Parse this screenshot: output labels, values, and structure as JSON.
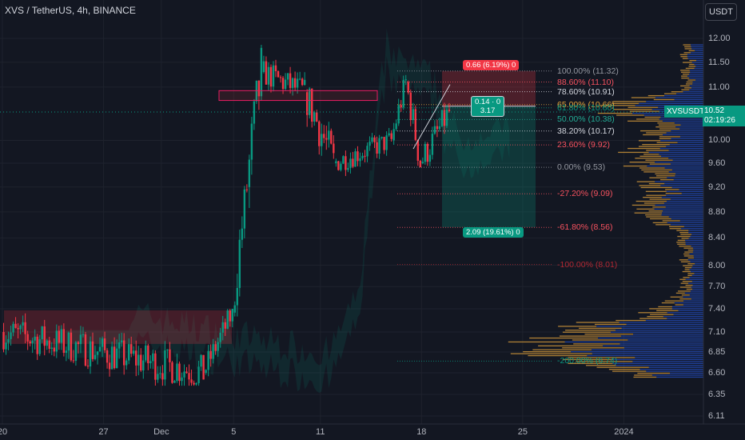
{
  "header": {
    "title": "XVS / TetherUS, 4h, BINANCE",
    "unit_button": "USDT"
  },
  "price_tag": {
    "symbol": "XVSUSDT",
    "price": "10.52",
    "countdown": "02:19:26"
  },
  "position_tool": {
    "target_label": "0.66 (6.19%) 0",
    "stop_label": "2.09 (19.61%) 0",
    "ratio_line1": "0.14 · 0",
    "ratio_line2": "3.17"
  },
  "fib_levels": [
    {
      "label": "100.00% (11.32)",
      "price": 11.32,
      "color": "#9598a1"
    },
    {
      "label": "88.60% (11.10)",
      "price": 11.1,
      "color": "#f7525f"
    },
    {
      "label": "78.60% (10.91)",
      "price": 10.91,
      "color": "#d1d4dc"
    },
    {
      "label": "65.00% (10.66)",
      "price": 10.66,
      "color": "#e3a33b"
    },
    {
      "label": "61.80% (10.60)",
      "price": 10.6,
      "color": "#089981"
    },
    {
      "label": "50.00% (10.38)",
      "price": 10.38,
      "color": "#22ab94"
    },
    {
      "label": "38.20% (10.17)",
      "price": 10.17,
      "color": "#d1d4dc"
    },
    {
      "label": "23.60% (9.92)",
      "price": 9.92,
      "color": "#f7525f"
    },
    {
      "label": "0.00% (9.53)",
      "price": 9.53,
      "color": "#9598a1"
    },
    {
      "label": "-27.20% (9.09)",
      "price": 9.09,
      "color": "#f7525f"
    },
    {
      "label": "-61.80% (8.56)",
      "price": 8.56,
      "color": "#f7525f"
    },
    {
      "label": "-100.00% (8.01)",
      "price": 8.01,
      "color": "#b22833"
    },
    {
      "label": "-200.00% (6.74)",
      "price": 6.74,
      "color": "#089981"
    }
  ],
  "colors": {
    "up": "#089981",
    "down": "#f23645",
    "background": "#131722",
    "volume_profile_a": "#e3a33b",
    "volume_profile_b": "#2962ff"
  },
  "chart_data": {
    "type": "candlestick",
    "scale": "log",
    "ylim": [
      6.11,
      12.0
    ],
    "price_ticks": [
      "12.00",
      "11.50",
      "11.00",
      "10.00",
      "9.60",
      "9.20",
      "8.80",
      "8.40",
      "8.00",
      "7.70",
      "7.40",
      "7.10",
      "6.85",
      "6.60",
      "6.35",
      "6.11"
    ],
    "x_ticks": [
      "20",
      "27",
      "Dec",
      "5",
      "11",
      "18",
      "25",
      "2024"
    ],
    "segments": [
      {
        "from": "Nov 20",
        "to": "Dec 3",
        "start": 7.1,
        "end": 6.6,
        "low": 6.45,
        "high": 7.62
      },
      {
        "from": "Dec 3",
        "to": "Dec 5",
        "start": 6.6,
        "end": 7.35,
        "low": 6.5,
        "high": 7.4
      },
      {
        "from": "Dec 5",
        "to": "Dec 6",
        "start": 7.35,
        "end": 9.2,
        "low": 7.3,
        "high": 9.3
      },
      {
        "from": "Dec 6",
        "to": "Dec 7",
        "start": 9.2,
        "end": 11.3,
        "low": 8.4,
        "high": 11.88
      },
      {
        "from": "Dec 7",
        "to": "Dec 10",
        "start": 11.3,
        "end": 10.9,
        "low": 10.3,
        "high": 11.8
      },
      {
        "from": "Dec 10",
        "to": "Dec 12",
        "start": 10.9,
        "end": 9.6,
        "low": 8.85,
        "high": 11.0
      },
      {
        "from": "Dec 12",
        "to": "Dec 16",
        "start": 9.6,
        "end": 10.0,
        "low": 9.3,
        "high": 10.4
      },
      {
        "from": "Dec 16",
        "to": "Dec 17",
        "start": 10.0,
        "end": 11.1,
        "low": 9.9,
        "high": 11.32
      },
      {
        "from": "Dec 17",
        "to": "Dec 18",
        "start": 11.1,
        "end": 9.6,
        "low": 9.53,
        "high": 11.2
      },
      {
        "from": "Dec 18",
        "to": "Dec 20",
        "start": 9.6,
        "end": 10.52,
        "low": 9.55,
        "high": 11.05
      }
    ],
    "last_price": 10.52
  }
}
